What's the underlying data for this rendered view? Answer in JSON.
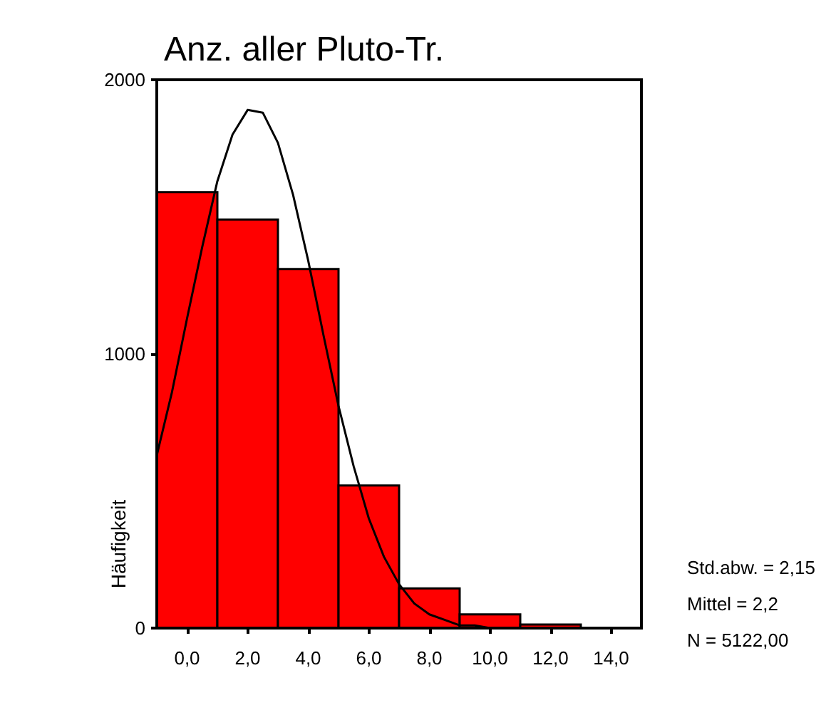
{
  "chart_data": {
    "type": "histogram",
    "title": "Anz. aller Pluto-Tr.",
    "ylabel": "Häufigkeit",
    "xlim": [
      -1,
      15
    ],
    "xticks": [
      {
        "value": 0,
        "label": "0,0"
      },
      {
        "value": 2,
        "label": "2,0"
      },
      {
        "value": 4,
        "label": "4,0"
      },
      {
        "value": 6,
        "label": "6,0"
      },
      {
        "value": 8,
        "label": "8,0"
      },
      {
        "value": 10,
        "label": "10,0"
      },
      {
        "value": 12,
        "label": "12,0"
      },
      {
        "value": 14,
        "label": "14,0"
      }
    ],
    "ylim": [
      0,
      2000
    ],
    "yticks": [
      0,
      1000,
      2000
    ],
    "grid": false,
    "series": [
      {
        "color": "#ff0000",
        "bins": [
          -1,
          1,
          3,
          5,
          7,
          9,
          11,
          13
        ],
        "values": [
          1590,
          1490,
          1310,
          520,
          145,
          50,
          13
        ]
      },
      {
        "type": "line",
        "color": "#000000",
        "marker": "none",
        "x": [
          -1,
          -0.5,
          0,
          0.5,
          1,
          1.5,
          2,
          2.5,
          3,
          3.5,
          4,
          4.5,
          5,
          5.5,
          6,
          6.5,
          7,
          7.5,
          8,
          8.5,
          9,
          9.5,
          10
        ],
        "values": [
          630,
          860,
          1130,
          1390,
          1630,
          1800,
          1890,
          1880,
          1770,
          1580,
          1340,
          1070,
          810,
          590,
          400,
          260,
          160,
          90,
          50,
          30,
          10,
          10,
          0
        ]
      }
    ],
    "annotations": [
      "Std.abw. = 2,15",
      "Mittel = 2,2",
      "N = 5122,00"
    ]
  }
}
